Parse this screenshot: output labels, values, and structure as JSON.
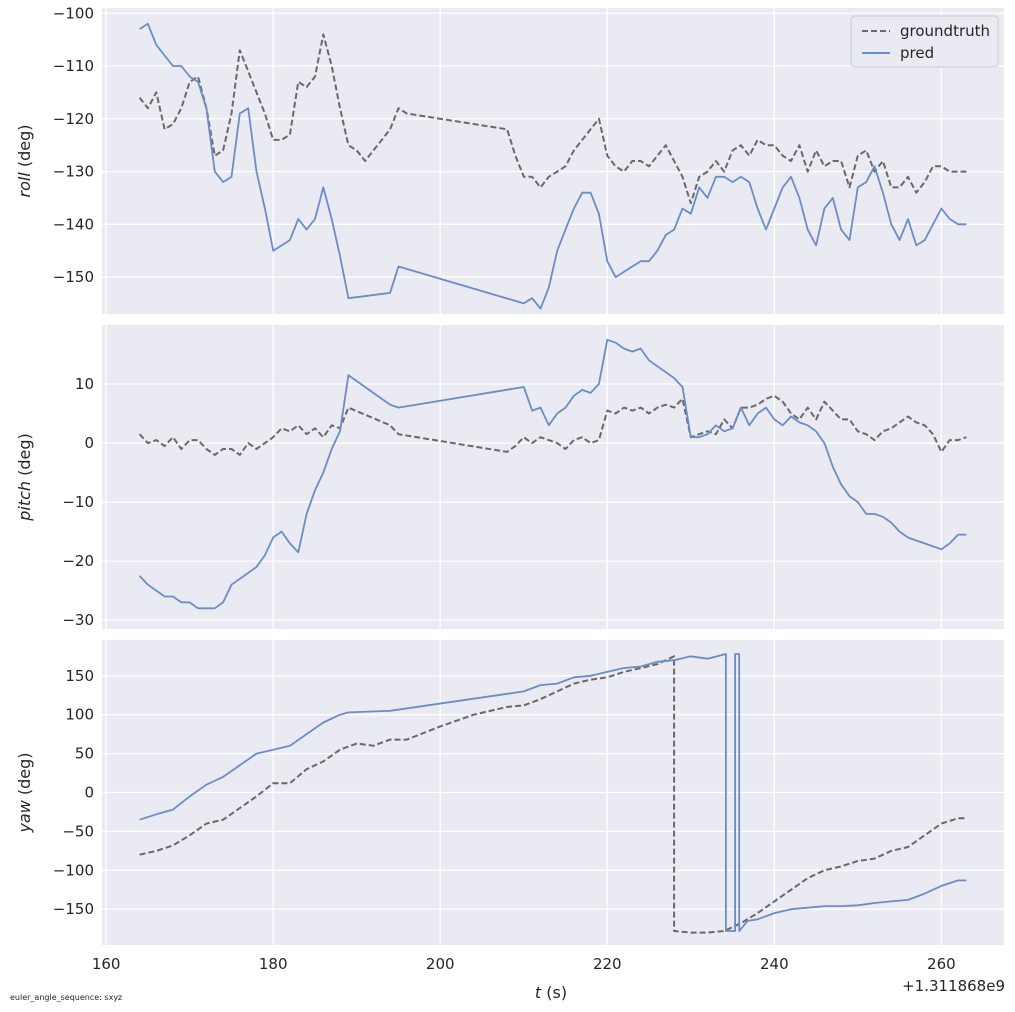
{
  "colors": {
    "panel_bg": "#eaeaf2",
    "grid": "#ffffff",
    "groundtruth": "#696969",
    "pred": "#6b8cc7",
    "text": "#262626"
  },
  "footnote": "euler_angle_sequence: sxyz",
  "chart_data": [
    {
      "type": "line",
      "panel": "roll",
      "ylabel": {
        "italic": "roll",
        "rest": " (deg)"
      },
      "ylim": [
        -157,
        -99
      ],
      "yticks": [
        -100,
        -110,
        -120,
        -130,
        -140,
        -150
      ],
      "ytick_labels": [
        "−100",
        "−110",
        "−120",
        "−130",
        "−140",
        "−150"
      ],
      "xlim": [
        159.5,
        267.5
      ],
      "legend": {
        "position": "top-right",
        "entries": [
          "groundtruth",
          "pred"
        ]
      },
      "series": [
        {
          "name": "groundtruth",
          "style": "dashed",
          "x": [
            164,
            165,
            166,
            167,
            168,
            169,
            170,
            171,
            172,
            173,
            174,
            175,
            176,
            177,
            178,
            179,
            180,
            181,
            182,
            183,
            184,
            185,
            186,
            187,
            188,
            189,
            190,
            191,
            192,
            193,
            194,
            195,
            196,
            208,
            209,
            210,
            211,
            212,
            213,
            214,
            215,
            216,
            217,
            218,
            219,
            220,
            221,
            222,
            223,
            224,
            225,
            226,
            227,
            228,
            229,
            230,
            231,
            232,
            233,
            234,
            235,
            236,
            237,
            238,
            239,
            240,
            241,
            242,
            243,
            244,
            245,
            246,
            247,
            248,
            249,
            250,
            251,
            252,
            253,
            254,
            255,
            256,
            257,
            258,
            259,
            260,
            261,
            262,
            263
          ],
          "y": [
            -116,
            -118,
            -115,
            -122,
            -121,
            -118,
            -113,
            -112,
            -118,
            -127,
            -126,
            -119,
            -107,
            -111,
            -115,
            -119,
            -124,
            -124,
            -123,
            -113,
            -114,
            -112,
            -104,
            -110,
            -118,
            -125,
            -126,
            -128,
            -126,
            -124,
            -122,
            -118,
            -119,
            -122,
            -127,
            -131,
            -131,
            -133,
            -131,
            -130,
            -129,
            -126,
            -124,
            -122,
            -120,
            -127,
            -129,
            -130,
            -128,
            -128,
            -129,
            -127,
            -125,
            -128,
            -131,
            -136,
            -131,
            -130,
            -128,
            -130,
            -126,
            -125,
            -127,
            -124,
            -125,
            -125,
            -127,
            -128,
            -125,
            -130,
            -126,
            -129,
            -128,
            -128,
            -133,
            -127,
            -126,
            -130,
            -128,
            -133,
            -133,
            -131,
            -134,
            -132,
            -129,
            -129,
            -130,
            -130,
            -130
          ]
        },
        {
          "name": "pred",
          "style": "solid",
          "x": [
            164,
            165,
            166,
            167,
            168,
            169,
            170,
            171,
            172,
            173,
            174,
            175,
            176,
            177,
            178,
            179,
            180,
            181,
            182,
            183,
            184,
            185,
            186,
            187,
            188,
            189,
            194,
            195,
            210,
            211,
            212,
            213,
            214,
            215,
            216,
            217,
            218,
            219,
            220,
            221,
            222,
            223,
            224,
            225,
            226,
            227,
            228,
            229,
            230,
            231,
            232,
            233,
            234,
            235,
            236,
            237,
            238,
            239,
            240,
            241,
            242,
            243,
            244,
            245,
            246,
            247,
            248,
            249,
            250,
            251,
            252,
            253,
            254,
            255,
            256,
            257,
            258,
            259,
            260,
            261,
            262,
            263
          ],
          "y": [
            -103,
            -102,
            -106,
            -108,
            -110,
            -110,
            -112,
            -113,
            -118,
            -130,
            -132,
            -131,
            -119,
            -118,
            -130,
            -137,
            -145,
            -144,
            -143,
            -139,
            -141,
            -139,
            -133,
            -139,
            -146,
            -154,
            -153,
            -148,
            -155,
            -154,
            -156,
            -152,
            -145,
            -141,
            -137,
            -134,
            -134,
            -138,
            -147,
            -150,
            -149,
            -148,
            -147,
            -147,
            -145,
            -142,
            -141,
            -137,
            -138,
            -133,
            -135,
            -131,
            -131,
            -132,
            -131,
            -132,
            -137,
            -141,
            -137,
            -133,
            -131,
            -135,
            -141,
            -144,
            -137,
            -135,
            -141,
            -143,
            -133,
            -132,
            -129,
            -134,
            -140,
            -143,
            -139,
            -144,
            -143,
            -140,
            -137,
            -139,
            -140,
            -140
          ]
        }
      ]
    },
    {
      "type": "line",
      "panel": "pitch",
      "ylabel": {
        "italic": "pitch",
        "rest": " (deg)"
      },
      "ylim": [
        -31.5,
        20
      ],
      "yticks": [
        10,
        0,
        -10,
        -20,
        -30
      ],
      "ytick_labels": [
        "10",
        "0",
        "−10",
        "−20",
        "−30"
      ],
      "xlim": [
        159.5,
        267.5
      ],
      "series": [
        {
          "name": "groundtruth",
          "style": "dashed",
          "x": [
            164,
            165,
            166,
            167,
            168,
            169,
            170,
            171,
            172,
            173,
            174,
            175,
            176,
            177,
            178,
            179,
            180,
            181,
            182,
            183,
            184,
            185,
            186,
            187,
            188,
            189,
            194,
            195,
            208,
            209,
            210,
            211,
            212,
            213,
            214,
            215,
            216,
            217,
            218,
            219,
            220,
            221,
            222,
            223,
            224,
            225,
            226,
            227,
            228,
            229,
            230,
            231,
            232,
            233,
            234,
            235,
            236,
            237,
            238,
            239,
            240,
            241,
            242,
            243,
            244,
            245,
            246,
            247,
            248,
            249,
            250,
            251,
            252,
            253,
            254,
            255,
            256,
            257,
            258,
            259,
            260,
            261,
            262,
            263
          ],
          "y": [
            1.5,
            0,
            0.5,
            -0.5,
            1,
            -1,
            0.5,
            0.5,
            -1,
            -2,
            -1,
            -1,
            -2,
            0,
            -1,
            0,
            1,
            2.5,
            2,
            3,
            1.5,
            2.5,
            1,
            3,
            2.5,
            6,
            3,
            1.5,
            -1.5,
            -0.5,
            1,
            0,
            1,
            0.5,
            0,
            -1,
            0.5,
            1,
            0,
            0.5,
            5.5,
            5,
            6,
            5.5,
            6,
            5,
            6,
            6.5,
            6,
            7.5,
            1,
            1.5,
            2,
            1.5,
            4,
            2.5,
            6,
            6,
            6.5,
            7.5,
            8,
            7,
            5,
            4,
            6,
            4,
            7,
            5.5,
            4,
            4,
            2,
            1.5,
            0.5,
            2,
            2.5,
            3.5,
            4.5,
            3.5,
            3,
            1.5,
            -1.5,
            0.5,
            0.5,
            1
          ]
        },
        {
          "name": "pred",
          "style": "solid",
          "x": [
            164,
            165,
            166,
            167,
            168,
            169,
            170,
            171,
            172,
            173,
            174,
            175,
            176,
            177,
            178,
            179,
            180,
            181,
            182,
            183,
            184,
            185,
            186,
            187,
            188,
            189,
            194,
            195,
            210,
            211,
            212,
            213,
            214,
            215,
            216,
            217,
            218,
            219,
            220,
            221,
            222,
            223,
            224,
            225,
            226,
            227,
            228,
            229,
            230,
            231,
            232,
            233,
            234,
            235,
            236,
            237,
            238,
            239,
            240,
            241,
            242,
            243,
            244,
            245,
            246,
            247,
            248,
            249,
            250,
            251,
            252,
            253,
            254,
            255,
            256,
            257,
            258,
            259,
            260,
            261,
            262,
            263
          ],
          "y": [
            -22.5,
            -24,
            -25,
            -26,
            -26,
            -27,
            -27,
            -28,
            -28,
            -28,
            -27,
            -24,
            -23,
            -22,
            -21,
            -19,
            -16,
            -15,
            -17,
            -18.5,
            -12,
            -8,
            -5,
            -1,
            2,
            11.5,
            6.5,
            6,
            9.5,
            5.5,
            6,
            3,
            5,
            6,
            8,
            9,
            8.5,
            10,
            17.5,
            17,
            16,
            15.5,
            16,
            14,
            13,
            12,
            11,
            9.5,
            1,
            1,
            1.5,
            3,
            2,
            2.5,
            6,
            3,
            5,
            6,
            4,
            3,
            4.5,
            3.5,
            3,
            2,
            0,
            -4,
            -7,
            -9,
            -10,
            -12,
            -12,
            -12.5,
            -13.5,
            -15,
            -16,
            -16.5,
            -17,
            -17.5,
            -18,
            -17,
            -15.5,
            -15.5
          ]
        }
      ]
    },
    {
      "type": "line",
      "panel": "yaw",
      "ylabel": {
        "italic": "yaw",
        "rest": " (deg)"
      },
      "ylim": [
        -196,
        196
      ],
      "yticks": [
        150,
        100,
        50,
        0,
        -50,
        -100,
        -150
      ],
      "ytick_labels": [
        "150",
        "100",
        "50",
        "0",
        "−50",
        "−100",
        "−150"
      ],
      "xlim": [
        159.5,
        267.5
      ],
      "xticks": [
        160,
        180,
        200,
        220,
        240,
        260
      ],
      "xtick_labels": [
        "160",
        "180",
        "200",
        "220",
        "240",
        "260"
      ],
      "xlabel": {
        "italic": "t",
        "rest": " (s)"
      },
      "offset_text": "+1.311868e9",
      "series": [
        {
          "name": "groundtruth",
          "style": "dashed",
          "x": [
            164,
            166,
            168,
            170,
            172,
            174,
            176,
            178,
            180,
            182,
            184,
            186,
            188,
            190,
            192,
            194,
            196,
            200,
            204,
            208,
            210,
            212,
            214,
            216,
            218,
            220,
            222,
            224,
            226,
            228,
            228,
            230,
            232,
            234,
            236,
            238,
            240,
            242,
            244,
            246,
            248,
            250,
            252,
            254,
            256,
            258,
            260,
            262,
            263
          ],
          "y": [
            -80,
            -75,
            -68,
            -55,
            -40,
            -35,
            -20,
            -5,
            12,
            12,
            30,
            40,
            55,
            63,
            60,
            68,
            68,
            85,
            100,
            110,
            112,
            120,
            130,
            140,
            145,
            148,
            155,
            160,
            165,
            175,
            -178,
            -180,
            -180,
            -178,
            -168,
            -155,
            -140,
            -125,
            -110,
            -100,
            -95,
            -88,
            -85,
            -75,
            -70,
            -55,
            -40,
            -33,
            -33
          ]
        },
        {
          "name": "pred",
          "style": "solid",
          "x": [
            164,
            166,
            168,
            170,
            172,
            174,
            176,
            178,
            180,
            182,
            184,
            186,
            188,
            189,
            194,
            210,
            212,
            214,
            216,
            218,
            220,
            222,
            224,
            226,
            228,
            230,
            232,
            234.2,
            234.2,
            235.3,
            235.3,
            235.8,
            235.8,
            236.8,
            238,
            240,
            242,
            244,
            246,
            248,
            250,
            252,
            254,
            256,
            258,
            260,
            262,
            263
          ],
          "y": [
            -35,
            -28,
            -22,
            -5,
            10,
            20,
            35,
            50,
            55,
            60,
            75,
            90,
            100,
            103,
            105,
            130,
            138,
            140,
            148,
            150,
            155,
            160,
            162,
            168,
            170,
            175,
            172,
            178,
            -178,
            -178,
            178,
            178,
            -178,
            -165,
            -163,
            -155,
            -150,
            -148,
            -146,
            -146,
            -145,
            -142,
            -140,
            -138,
            -130,
            -120,
            -113,
            -113
          ]
        }
      ]
    }
  ]
}
